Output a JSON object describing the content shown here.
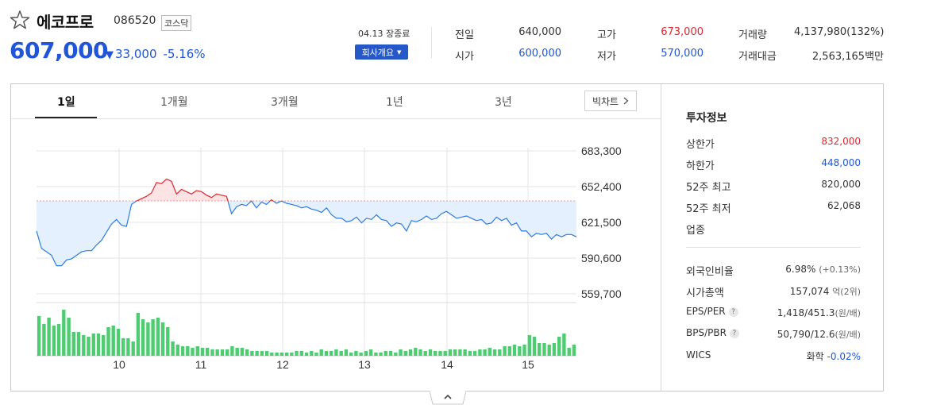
{
  "stock": {
    "name": "에코프로",
    "code": "086520",
    "market": "코스닥",
    "price": "607,000",
    "change_arrow": "▼",
    "change_amount": "33,000",
    "change_percent": "-5.16%"
  },
  "session": {
    "date_status": "04.13 장종료",
    "overview_label": "회사개요"
  },
  "quotes": {
    "prev_close": {
      "label": "전일",
      "value": "640,000"
    },
    "open": {
      "label": "시가",
      "value": "600,000"
    },
    "high": {
      "label": "고가",
      "value": "673,000"
    },
    "low": {
      "label": "저가",
      "value": "570,000"
    },
    "volume": {
      "label": "거래량",
      "value": "4,137,980(132%)"
    },
    "trade_value": {
      "label": "거래대금",
      "value": "2,563,165백만"
    }
  },
  "tabs": [
    "1일",
    "1개월",
    "3개월",
    "1년",
    "3년"
  ],
  "active_tab": 0,
  "bigchart_label": "빅차트",
  "chart_data": {
    "type": "line",
    "reference_line": 640000,
    "y_ticks": [
      "683,300",
      "652,400",
      "621,500",
      "590,600",
      "559,700"
    ],
    "ylim": [
      559700,
      683300
    ],
    "x_ticks": [
      "10",
      "11",
      "12",
      "13",
      "14",
      "15"
    ],
    "colors": {
      "up": "#e0252d",
      "down": "#2d7be0",
      "up_fill": "#fde3e3",
      "down_fill": "#e4f0fd",
      "volume": "#4fcc72"
    },
    "price_series": [
      614000,
      599000,
      596000,
      593000,
      584000,
      584000,
      589000,
      590000,
      593000,
      596000,
      597000,
      597000,
      602000,
      606000,
      613000,
      620000,
      624000,
      619000,
      618000,
      637000,
      640000,
      642000,
      644000,
      647000,
      656000,
      655000,
      659000,
      657000,
      646000,
      650000,
      648000,
      646000,
      649000,
      648000,
      645000,
      643000,
      646000,
      645000,
      644000,
      629000,
      635000,
      637000,
      636000,
      640000,
      634000,
      639000,
      637000,
      641000,
      638000,
      640000,
      638000,
      637000,
      636000,
      634000,
      635000,
      633000,
      632000,
      630000,
      634000,
      628000,
      625000,
      625000,
      622000,
      623000,
      626000,
      621000,
      625000,
      624000,
      628000,
      624000,
      623000,
      618000,
      621000,
      620000,
      614000,
      623000,
      622000,
      624000,
      627000,
      624000,
      625000,
      629000,
      631000,
      628000,
      625000,
      626000,
      627000,
      625000,
      623000,
      624000,
      620000,
      621000,
      626000,
      623000,
      625000,
      619000,
      621000,
      614000,
      614000,
      609000,
      612000,
      611000,
      612000,
      607000,
      611000,
      609000,
      611000,
      611000,
      609000
    ],
    "volume_series": [
      50,
      40,
      48,
      38,
      40,
      58,
      48,
      30,
      30,
      26,
      24,
      28,
      28,
      26,
      36,
      38,
      34,
      22,
      22,
      18,
      54,
      46,
      42,
      46,
      48,
      42,
      36,
      18,
      14,
      12,
      12,
      10,
      12,
      10,
      10,
      8,
      8,
      8,
      8,
      12,
      10,
      10,
      8,
      6,
      6,
      6,
      6,
      4,
      4,
      4,
      4,
      4,
      6,
      6,
      4,
      6,
      4,
      8,
      6,
      6,
      8,
      6,
      8,
      4,
      6,
      4,
      6,
      8,
      4,
      4,
      6,
      6,
      4,
      8,
      6,
      8,
      10,
      8,
      6,
      8,
      6,
      6,
      6,
      8,
      8,
      8,
      8,
      6,
      6,
      8,
      8,
      10,
      8,
      8,
      12,
      12,
      14,
      12,
      14,
      26,
      24,
      16,
      16,
      14,
      16,
      24,
      28,
      10,
      14
    ]
  },
  "investment_info": {
    "title": "투자정보",
    "rows": [
      {
        "label": "상한가",
        "value": "832,000",
        "color": "red"
      },
      {
        "label": "하한가",
        "value": "448,000",
        "color": "blue"
      },
      {
        "label": "52주 최고",
        "value": "820,000",
        "color": "plain"
      },
      {
        "label": "52주 최저",
        "value": "62,068",
        "color": "plain"
      },
      {
        "label": "업종",
        "value": "",
        "color": "plain"
      }
    ],
    "rows2": [
      {
        "label": "외국인비율",
        "value": "6.98%",
        "sub": "(+0.13%)"
      },
      {
        "label": "시가총액",
        "value": "157,074",
        "sub": "억(2위)"
      },
      {
        "label": "EPS/PER",
        "value": "1,418/451.3",
        "sub": "(원/배)",
        "help": "?"
      },
      {
        "label": "BPS/PBR",
        "value": "50,790/12.6",
        "sub": "(원/배)",
        "help": "?"
      },
      {
        "label": "WICS",
        "value": "화학",
        "sub": "-0.02%"
      }
    ]
  },
  "collapse_icon": "chevron-up-icon"
}
